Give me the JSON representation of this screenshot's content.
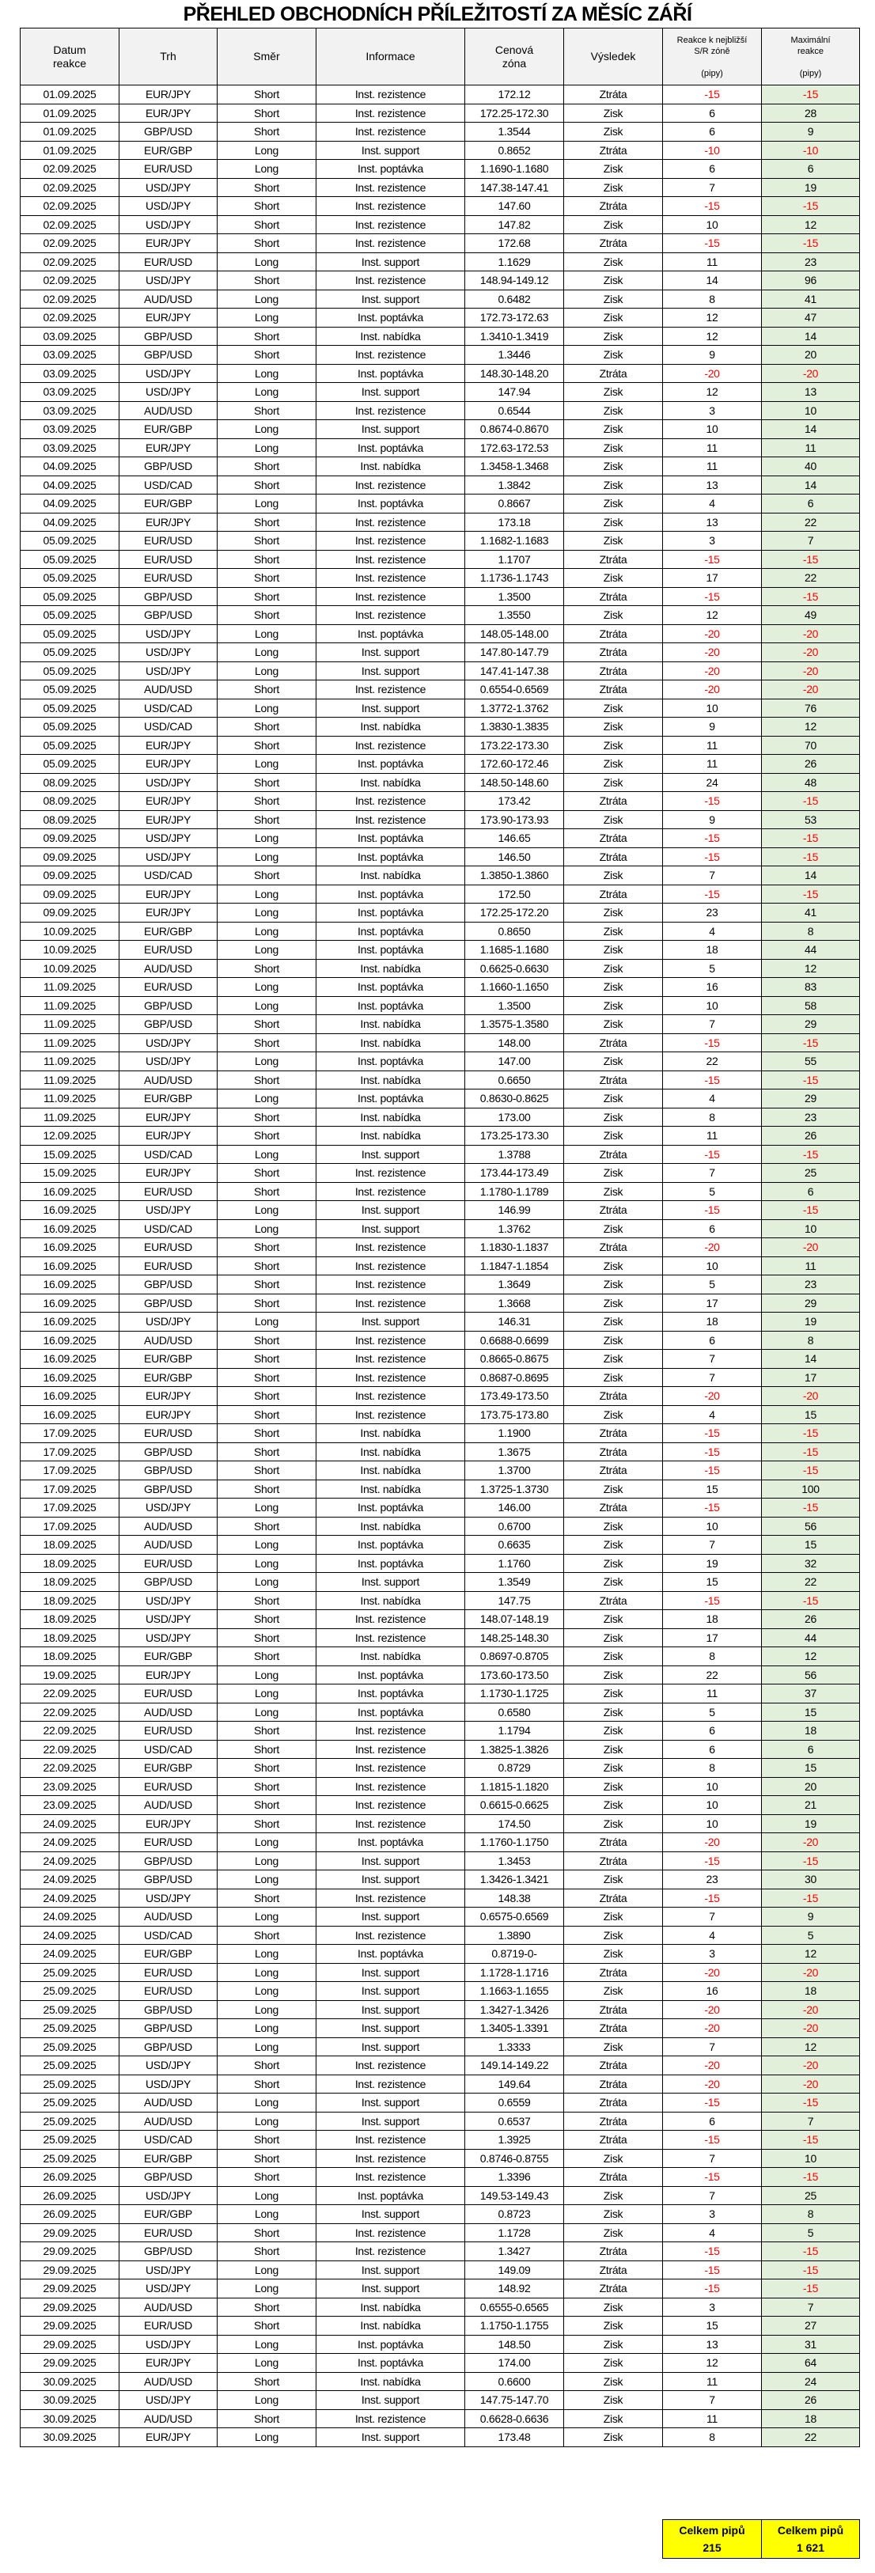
{
  "title": "PŘEHLED OBCHODNÍCH PŘÍLEŽITOSTÍ ZA MĚSÍC ZÁŘÍ",
  "colors": {
    "negative": "#ff0000",
    "max_column_bg": "#e2efda",
    "header_bg": "#f2f2f2",
    "totals_bg": "#ffff00"
  },
  "columns": {
    "date": [
      "Datum",
      "reakce"
    ],
    "market": "Trh",
    "direction": "Směr",
    "info": "Informace",
    "zone": [
      "Cenová",
      "zóna"
    ],
    "result": "Výsledek",
    "reaction": [
      "Reakce k nejbližší",
      "S/R zóně",
      "(pipy)"
    ],
    "max": [
      "Maximální",
      "reakce",
      "(pipy)"
    ]
  },
  "rows": [
    [
      "01.09.2025",
      "EUR/JPY",
      "Short",
      "Inst. rezistence",
      "172.12",
      "Ztráta",
      "-15",
      "-15"
    ],
    [
      "01.09.2025",
      "EUR/JPY",
      "Short",
      "Inst. rezistence",
      "172.25-172.30",
      "Zisk",
      "6",
      "28"
    ],
    [
      "01.09.2025",
      "GBP/USD",
      "Short",
      "Inst. rezistence",
      "1.3544",
      "Zisk",
      "6",
      "9"
    ],
    [
      "01.09.2025",
      "EUR/GBP",
      "Long",
      "Inst. support",
      "0.8652",
      "Ztráta",
      "-10",
      "-10"
    ],
    [
      "02.09.2025",
      "EUR/USD",
      "Long",
      "Inst. poptávka",
      "1.1690-1.1680",
      "Zisk",
      "6",
      "6"
    ],
    [
      "02.09.2025",
      "USD/JPY",
      "Short",
      "Inst. rezistence",
      "147.38-147.41",
      "Zisk",
      "7",
      "19"
    ],
    [
      "02.09.2025",
      "USD/JPY",
      "Short",
      "Inst. rezistence",
      "147.60",
      "Ztráta",
      "-15",
      "-15"
    ],
    [
      "02.09.2025",
      "USD/JPY",
      "Short",
      "Inst. rezistence",
      "147.82",
      "Zisk",
      "10",
      "12"
    ],
    [
      "02.09.2025",
      "EUR/JPY",
      "Short",
      "Inst. rezistence",
      "172.68",
      "Ztráta",
      "-15",
      "-15"
    ],
    [
      "02.09.2025",
      "EUR/USD",
      "Long",
      "Inst. support",
      "1.1629",
      "Zisk",
      "11",
      "23"
    ],
    [
      "02.09.2025",
      "USD/JPY",
      "Short",
      "Inst. rezistence",
      "148.94-149.12",
      "Zisk",
      "14",
      "96"
    ],
    [
      "02.09.2025",
      "AUD/USD",
      "Long",
      "Inst. support",
      "0.6482",
      "Zisk",
      "8",
      "41"
    ],
    [
      "02.09.2025",
      "EUR/JPY",
      "Long",
      "Inst. poptávka",
      "172.73-172.63",
      "Zisk",
      "12",
      "47"
    ],
    [
      "03.09.2025",
      "GBP/USD",
      "Short",
      "Inst. nabídka",
      "1.3410-1.3419",
      "Zisk",
      "12",
      "14"
    ],
    [
      "03.09.2025",
      "GBP/USD",
      "Short",
      "Inst. rezistence",
      "1.3446",
      "Zisk",
      "9",
      "20"
    ],
    [
      "03.09.2025",
      "USD/JPY",
      "Long",
      "Inst. poptávka",
      "148.30-148.20",
      "Ztráta",
      "-20",
      "-20"
    ],
    [
      "03.09.2025",
      "USD/JPY",
      "Long",
      "Inst. support",
      "147.94",
      "Zisk",
      "12",
      "13"
    ],
    [
      "03.09.2025",
      "AUD/USD",
      "Short",
      "Inst. rezistence",
      "0.6544",
      "Zisk",
      "3",
      "10"
    ],
    [
      "03.09.2025",
      "EUR/GBP",
      "Long",
      "Inst. support",
      "0.8674-0.8670",
      "Zisk",
      "10",
      "14"
    ],
    [
      "03.09.2025",
      "EUR/JPY",
      "Long",
      "Inst. poptávka",
      "172.63-172.53",
      "Zisk",
      "11",
      "11"
    ],
    [
      "04.09.2025",
      "GBP/USD",
      "Short",
      "Inst. nabídka",
      "1.3458-1.3468",
      "Zisk",
      "11",
      "40"
    ],
    [
      "04.09.2025",
      "USD/CAD",
      "Short",
      "Inst. rezistence",
      "1.3842",
      "Zisk",
      "13",
      "14"
    ],
    [
      "04.09.2025",
      "EUR/GBP",
      "Long",
      "Inst. poptávka",
      "0.8667",
      "Zisk",
      "4",
      "6"
    ],
    [
      "04.09.2025",
      "EUR/JPY",
      "Short",
      "Inst. rezistence",
      "173.18",
      "Zisk",
      "13",
      "22"
    ],
    [
      "05.09.2025",
      "EUR/USD",
      "Short",
      "Inst. rezistence",
      "1.1682-1.1683",
      "Zisk",
      "3",
      "7"
    ],
    [
      "05.09.2025",
      "EUR/USD",
      "Short",
      "Inst. rezistence",
      "1.1707",
      "Ztráta",
      "-15",
      "-15"
    ],
    [
      "05.09.2025",
      "EUR/USD",
      "Short",
      "Inst. rezistence",
      "1.1736-1.1743",
      "Zisk",
      "17",
      "22"
    ],
    [
      "05.09.2025",
      "GBP/USD",
      "Short",
      "Inst. rezistence",
      "1.3500",
      "Ztráta",
      "-15",
      "-15"
    ],
    [
      "05.09.2025",
      "GBP/USD",
      "Short",
      "Inst. rezistence",
      "1.3550",
      "Zisk",
      "12",
      "49"
    ],
    [
      "05.09.2025",
      "USD/JPY",
      "Long",
      "Inst. poptávka",
      "148.05-148.00",
      "Ztráta",
      "-20",
      "-20"
    ],
    [
      "05.09.2025",
      "USD/JPY",
      "Long",
      "Inst. support",
      "147.80-147.79",
      "Ztráta",
      "-20",
      "-20"
    ],
    [
      "05.09.2025",
      "USD/JPY",
      "Long",
      "Inst. support",
      "147.41-147.38",
      "Ztráta",
      "-20",
      "-20"
    ],
    [
      "05.09.2025",
      "AUD/USD",
      "Short",
      "Inst. rezistence",
      "0.6554-0.6569",
      "Ztráta",
      "-20",
      "-20"
    ],
    [
      "05.09.2025",
      "USD/CAD",
      "Long",
      "Inst. support",
      "1.3772-1.3762",
      "Zisk",
      "10",
      "76"
    ],
    [
      "05.09.2025",
      "USD/CAD",
      "Short",
      "Inst. nabídka",
      "1.3830-1.3835",
      "Zisk",
      "9",
      "12"
    ],
    [
      "05.09.2025",
      "EUR/JPY",
      "Short",
      "Inst. rezistence",
      "173.22-173.30",
      "Zisk",
      "11",
      "70"
    ],
    [
      "05.09.2025",
      "EUR/JPY",
      "Long",
      "Inst. poptávka",
      "172.60-172.46",
      "Zisk",
      "11",
      "26"
    ],
    [
      "08.09.2025",
      "USD/JPY",
      "Short",
      "Inst. nabídka",
      "148.50-148.60",
      "Zisk",
      "24",
      "48"
    ],
    [
      "08.09.2025",
      "EUR/JPY",
      "Short",
      "Inst. rezistence",
      "173.42",
      "Ztráta",
      "-15",
      "-15"
    ],
    [
      "08.09.2025",
      "EUR/JPY",
      "Short",
      "Inst. rezistence",
      "173.90-173.93",
      "Zisk",
      "9",
      "53"
    ],
    [
      "09.09.2025",
      "USD/JPY",
      "Long",
      "Inst. poptávka",
      "146.65",
      "Ztráta",
      "-15",
      "-15"
    ],
    [
      "09.09.2025",
      "USD/JPY",
      "Long",
      "Inst. poptávka",
      "146.50",
      "Ztráta",
      "-15",
      "-15"
    ],
    [
      "09.09.2025",
      "USD/CAD",
      "Short",
      "Inst. nabídka",
      "1.3850-1.3860",
      "Zisk",
      "7",
      "14"
    ],
    [
      "09.09.2025",
      "EUR/JPY",
      "Long",
      "Inst. poptávka",
      "172.50",
      "Ztráta",
      "-15",
      "-15"
    ],
    [
      "09.09.2025",
      "EUR/JPY",
      "Long",
      "Inst. poptávka",
      "172.25-172.20",
      "Zisk",
      "23",
      "41"
    ],
    [
      "10.09.2025",
      "EUR/GBP",
      "Long",
      "Inst. poptávka",
      "0.8650",
      "Zisk",
      "4",
      "8"
    ],
    [
      "10.09.2025",
      "EUR/USD",
      "Long",
      "Inst. poptávka",
      "1.1685-1.1680",
      "Zisk",
      "18",
      "44"
    ],
    [
      "10.09.2025",
      "AUD/USD",
      "Short",
      "Inst. nabídka",
      "0.6625-0.6630",
      "Zisk",
      "5",
      "12"
    ],
    [
      "11.09.2025",
      "EUR/USD",
      "Long",
      "Inst. poptávka",
      "1.1660-1.1650",
      "Zisk",
      "16",
      "83"
    ],
    [
      "11.09.2025",
      "GBP/USD",
      "Long",
      "Inst. poptávka",
      "1.3500",
      "Zisk",
      "10",
      "58"
    ],
    [
      "11.09.2025",
      "GBP/USD",
      "Short",
      "Inst. nabídka",
      "1.3575-1.3580",
      "Zisk",
      "7",
      "29"
    ],
    [
      "11.09.2025",
      "USD/JPY",
      "Short",
      "Inst. nabídka",
      "148.00",
      "Ztráta",
      "-15",
      "-15"
    ],
    [
      "11.09.2025",
      "USD/JPY",
      "Long",
      "Inst. poptávka",
      "147.00",
      "Zisk",
      "22",
      "55"
    ],
    [
      "11.09.2025",
      "AUD/USD",
      "Short",
      "Inst. nabídka",
      "0.6650",
      "Ztráta",
      "-15",
      "-15"
    ],
    [
      "11.09.2025",
      "EUR/GBP",
      "Long",
      "Inst. poptávka",
      "0.8630-0.8625",
      "Zisk",
      "4",
      "29"
    ],
    [
      "11.09.2025",
      "EUR/JPY",
      "Short",
      "Inst. nabídka",
      "173.00",
      "Zisk",
      "8",
      "23"
    ],
    [
      "12.09.2025",
      "EUR/JPY",
      "Short",
      "Inst. nabídka",
      "173.25-173.30",
      "Zisk",
      "11",
      "26"
    ],
    [
      "15.09.2025",
      "USD/CAD",
      "Long",
      "Inst. support",
      "1.3788",
      "Ztráta",
      "-15",
      "-15"
    ],
    [
      "15.09.2025",
      "EUR/JPY",
      "Short",
      "Inst. rezistence",
      "173.44-173.49",
      "Zisk",
      "7",
      "25"
    ],
    [
      "16.09.2025",
      "EUR/USD",
      "Short",
      "Inst. rezistence",
      "1.1780-1.1789",
      "Zisk",
      "5",
      "6"
    ],
    [
      "16.09.2025",
      "USD/JPY",
      "Long",
      "Inst. support",
      "146.99",
      "Ztráta",
      "-15",
      "-15"
    ],
    [
      "16.09.2025",
      "USD/CAD",
      "Long",
      "Inst. support",
      "1.3762",
      "Zisk",
      "6",
      "10"
    ],
    [
      "16.09.2025",
      "EUR/USD",
      "Short",
      "Inst. rezistence",
      "1.1830-1.1837",
      "Ztráta",
      "-20",
      "-20"
    ],
    [
      "16.09.2025",
      "EUR/USD",
      "Short",
      "Inst. rezistence",
      "1.1847-1.1854",
      "Zisk",
      "10",
      "11"
    ],
    [
      "16.09.2025",
      "GBP/USD",
      "Short",
      "Inst. rezistence",
      "1.3649",
      "Zisk",
      "5",
      "23"
    ],
    [
      "16.09.2025",
      "GBP/USD",
      "Short",
      "Inst. rezistence",
      "1.3668",
      "Zisk",
      "17",
      "29"
    ],
    [
      "16.09.2025",
      "USD/JPY",
      "Long",
      "Inst. support",
      "146.31",
      "Zisk",
      "18",
      "19"
    ],
    [
      "16.09.2025",
      "AUD/USD",
      "Short",
      "Inst. rezistence",
      "0.6688-0.6699",
      "Zisk",
      "6",
      "8"
    ],
    [
      "16.09.2025",
      "EUR/GBP",
      "Short",
      "Inst. rezistence",
      "0.8665-0.8675",
      "Zisk",
      "7",
      "14"
    ],
    [
      "16.09.2025",
      "EUR/GBP",
      "Short",
      "Inst. rezistence",
      "0.8687-0.8695",
      "Zisk",
      "7",
      "17"
    ],
    [
      "16.09.2025",
      "EUR/JPY",
      "Short",
      "Inst. rezistence",
      "173.49-173.50",
      "Ztráta",
      "-20",
      "-20"
    ],
    [
      "16.09.2025",
      "EUR/JPY",
      "Short",
      "Inst. rezistence",
      "173.75-173.80",
      "Zisk",
      "4",
      "15"
    ],
    [
      "17.09.2025",
      "EUR/USD",
      "Short",
      "Inst. nabídka",
      "1.1900",
      "Ztráta",
      "-15",
      "-15"
    ],
    [
      "17.09.2025",
      "GBP/USD",
      "Short",
      "Inst. nabídka",
      "1.3675",
      "Ztráta",
      "-15",
      "-15"
    ],
    [
      "17.09.2025",
      "GBP/USD",
      "Short",
      "Inst. nabídka",
      "1.3700",
      "Ztráta",
      "-15",
      "-15"
    ],
    [
      "17.09.2025",
      "GBP/USD",
      "Short",
      "Inst. nabídka",
      "1.3725-1.3730",
      "Zisk",
      "15",
      "100"
    ],
    [
      "17.09.2025",
      "USD/JPY",
      "Long",
      "Inst. poptávka",
      "146.00",
      "Ztráta",
      "-15",
      "-15"
    ],
    [
      "17.09.2025",
      "AUD/USD",
      "Short",
      "Inst. nabídka",
      "0.6700",
      "Zisk",
      "10",
      "56"
    ],
    [
      "18.09.2025",
      "AUD/USD",
      "Long",
      "Inst. poptávka",
      "0.6635",
      "Zisk",
      "7",
      "15"
    ],
    [
      "18.09.2025",
      "EUR/USD",
      "Long",
      "Inst. poptávka",
      "1.1760",
      "Zisk",
      "19",
      "32"
    ],
    [
      "18.09.2025",
      "GBP/USD",
      "Long",
      "Inst. support",
      "1.3549",
      "Zisk",
      "15",
      "22"
    ],
    [
      "18.09.2025",
      "USD/JPY",
      "Short",
      "Inst. nabídka",
      "147.75",
      "Ztráta",
      "-15",
      "-15"
    ],
    [
      "18.09.2025",
      "USD/JPY",
      "Short",
      "Inst. rezistence",
      "148.07-148.19",
      "Zisk",
      "18",
      "26"
    ],
    [
      "18.09.2025",
      "USD/JPY",
      "Short",
      "Inst. rezistence",
      "148.25-148.30",
      "Zisk",
      "17",
      "44"
    ],
    [
      "18.09.2025",
      "EUR/GBP",
      "Short",
      "Inst. nabídka",
      "0.8697-0.8705",
      "Zisk",
      "8",
      "12"
    ],
    [
      "19.09.2025",
      "EUR/JPY",
      "Long",
      "Inst. poptávka",
      "173.60-173.50",
      "Zisk",
      "22",
      "56"
    ],
    [
      "22.09.2025",
      "EUR/USD",
      "Long",
      "Inst. poptávka",
      "1.1730-1.1725",
      "Zisk",
      "11",
      "37"
    ],
    [
      "22.09.2025",
      "AUD/USD",
      "Long",
      "Inst. poptávka",
      "0.6580",
      "Zisk",
      "5",
      "15"
    ],
    [
      "22.09.2025",
      "EUR/USD",
      "Short",
      "Inst. rezistence",
      "1.1794",
      "Zisk",
      "6",
      "18"
    ],
    [
      "22.09.2025",
      "USD/CAD",
      "Short",
      "Inst. rezistence",
      "1.3825-1.3826",
      "Zisk",
      "6",
      "6"
    ],
    [
      "22.09.2025",
      "EUR/GBP",
      "Short",
      "Inst. rezistence",
      "0.8729",
      "Zisk",
      "8",
      "15"
    ],
    [
      "23.09.2025",
      "EUR/USD",
      "Short",
      "Inst. rezistence",
      "1.1815-1.1820",
      "Zisk",
      "10",
      "20"
    ],
    [
      "23.09.2025",
      "AUD/USD",
      "Short",
      "Inst. rezistence",
      "0.6615-0.6625",
      "Zisk",
      "10",
      "21"
    ],
    [
      "24.09.2025",
      "EUR/JPY",
      "Short",
      "Inst. rezistence",
      "174.50",
      "Zisk",
      "10",
      "19"
    ],
    [
      "24.09.2025",
      "EUR/USD",
      "Long",
      "Inst. poptávka",
      "1.1760-1.1750",
      "Ztráta",
      "-20",
      "-20"
    ],
    [
      "24.09.2025",
      "GBP/USD",
      "Long",
      "Inst. support",
      "1.3453",
      "Ztráta",
      "-15",
      "-15"
    ],
    [
      "24.09.2025",
      "GBP/USD",
      "Long",
      "Inst. support",
      "1.3426-1.3421",
      "Zisk",
      "23",
      "30"
    ],
    [
      "24.09.2025",
      "USD/JPY",
      "Short",
      "Inst. rezistence",
      "148.38",
      "Ztráta",
      "-15",
      "-15"
    ],
    [
      "24.09.2025",
      "AUD/USD",
      "Long",
      "Inst. support",
      "0.6575-0.6569",
      "Zisk",
      "7",
      "9"
    ],
    [
      "24.09.2025",
      "USD/CAD",
      "Short",
      "Inst. rezistence",
      "1.3890",
      "Zisk",
      "4",
      "5"
    ],
    [
      "24.09.2025",
      "EUR/GBP",
      "Long",
      "Inst. poptávka",
      "0.8719-0-",
      "Zisk",
      "3",
      "12"
    ],
    [
      "25.09.2025",
      "EUR/USD",
      "Long",
      "Inst. support",
      "1.1728-1.1716",
      "Ztráta",
      "-20",
      "-20"
    ],
    [
      "25.09.2025",
      "EUR/USD",
      "Long",
      "Inst. support",
      "1.1663-1.1655",
      "Zisk",
      "16",
      "18"
    ],
    [
      "25.09.2025",
      "GBP/USD",
      "Long",
      "Inst. support",
      "1.3427-1.3426",
      "Ztráta",
      "-20",
      "-20"
    ],
    [
      "25.09.2025",
      "GBP/USD",
      "Long",
      "Inst. support",
      "1.3405-1.3391",
      "Ztráta",
      "-20",
      "-20"
    ],
    [
      "25.09.2025",
      "GBP/USD",
      "Long",
      "Inst. support",
      "1.3333",
      "Zisk",
      "7",
      "12"
    ],
    [
      "25.09.2025",
      "USD/JPY",
      "Short",
      "Inst. rezistence",
      "149.14-149.22",
      "Ztráta",
      "-20",
      "-20"
    ],
    [
      "25.09.2025",
      "USD/JPY",
      "Short",
      "Inst. rezistence",
      "149.64",
      "Ztráta",
      "-20",
      "-20"
    ],
    [
      "25.09.2025",
      "AUD/USD",
      "Long",
      "Inst. support",
      "0.6559",
      "Ztráta",
      "-15",
      "-15"
    ],
    [
      "25.09.2025",
      "AUD/USD",
      "Long",
      "Inst. support",
      "0.6537",
      "Ztráta",
      "6",
      "7"
    ],
    [
      "25.09.2025",
      "USD/CAD",
      "Short",
      "Inst. rezistence",
      "1.3925",
      "Ztráta",
      "-15",
      "-15"
    ],
    [
      "25.09.2025",
      "EUR/GBP",
      "Short",
      "Inst. rezistence",
      "0.8746-0.8755",
      "Zisk",
      "7",
      "10"
    ],
    [
      "26.09.2025",
      "GBP/USD",
      "Short",
      "Inst. rezistence",
      "1.3396",
      "Ztráta",
      "-15",
      "-15"
    ],
    [
      "26.09.2025",
      "USD/JPY",
      "Long",
      "Inst. poptávka",
      "149.53-149.43",
      "Zisk",
      "7",
      "25"
    ],
    [
      "26.09.2025",
      "EUR/GBP",
      "Long",
      "Inst. support",
      "0.8723",
      "Zisk",
      "3",
      "8"
    ],
    [
      "29.09.2025",
      "EUR/USD",
      "Short",
      "Inst. rezistence",
      "1.1728",
      "Zisk",
      "4",
      "5"
    ],
    [
      "29.09.2025",
      "GBP/USD",
      "Short",
      "Inst. rezistence",
      "1.3427",
      "Ztráta",
      "-15",
      "-15"
    ],
    [
      "29.09.2025",
      "USD/JPY",
      "Long",
      "Inst. support",
      "149.09",
      "Ztráta",
      "-15",
      "-15"
    ],
    [
      "29.09.2025",
      "USD/JPY",
      "Long",
      "Inst. support",
      "148.92",
      "Ztráta",
      "-15",
      "-15"
    ],
    [
      "29.09.2025",
      "AUD/USD",
      "Short",
      "Inst. nabídka",
      "0.6555-0.6565",
      "Zisk",
      "3",
      "7"
    ],
    [
      "29.09.2025",
      "EUR/USD",
      "Short",
      "Inst. nabídka",
      "1.1750-1.1755",
      "Zisk",
      "15",
      "27"
    ],
    [
      "29.09.2025",
      "USD/JPY",
      "Long",
      "Inst. poptávka",
      "148.50",
      "Zisk",
      "13",
      "31"
    ],
    [
      "29.09.2025",
      "EUR/JPY",
      "Long",
      "Inst. poptávka",
      "174.00",
      "Zisk",
      "12",
      "64"
    ],
    [
      "30.09.2025",
      "AUD/USD",
      "Short",
      "Inst. nabídka",
      "0.6600",
      "Zisk",
      "11",
      "24"
    ],
    [
      "30.09.2025",
      "USD/JPY",
      "Long",
      "Inst. support",
      "147.75-147.70",
      "Zisk",
      "7",
      "26"
    ],
    [
      "30.09.2025",
      "AUD/USD",
      "Short",
      "Inst. rezistence",
      "0.6628-0.6636",
      "Zisk",
      "11",
      "18"
    ],
    [
      "30.09.2025",
      "EUR/JPY",
      "Long",
      "Inst. support",
      "173.48",
      "Zisk",
      "8",
      "22"
    ]
  ],
  "totals": {
    "reaction": {
      "label": "Celkem pipů",
      "value": "215"
    },
    "max": {
      "label": "Celkem pipů",
      "value": "1 621"
    }
  }
}
